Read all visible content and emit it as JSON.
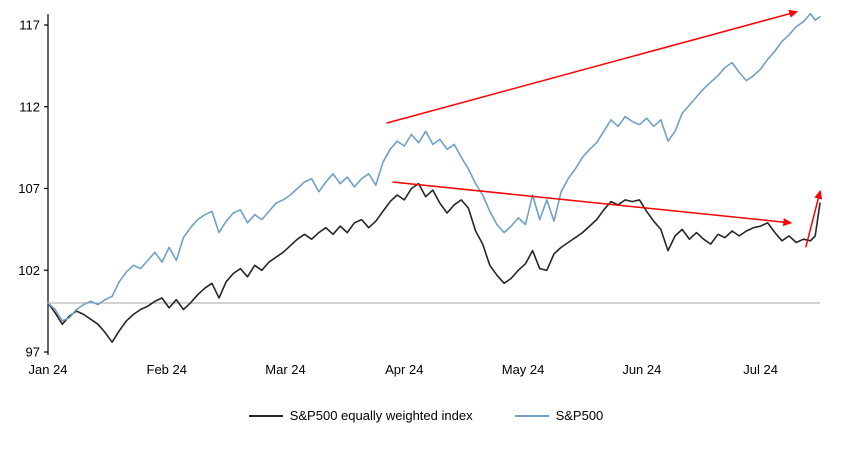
{
  "chart_data": {
    "type": "line",
    "title": "",
    "xlabel": "",
    "ylabel": "",
    "xlim": [
      0,
      6.5
    ],
    "ylim": [
      97,
      117
    ],
    "y_ticks": [
      97,
      102,
      107,
      112,
      117
    ],
    "x_tick_positions": [
      0,
      1,
      2,
      3,
      4,
      5,
      6
    ],
    "x_tick_labels": [
      "Jan 24",
      "Feb 24",
      "Mar 24",
      "Apr 24",
      "May 24",
      "Jun 24",
      "Jul 24"
    ],
    "baseline_value": 100,
    "grid": "off",
    "legend_position": "bottom-center",
    "colors": {
      "equal_weight_line": "#262626",
      "sp500_line": "#6FA0C8",
      "annotation_arrow": "#FF0000",
      "baseline": "#A6A6A6",
      "axis": "#000000"
    },
    "series": [
      {
        "name": "S&P500 equally weighted index",
        "color": "#262626",
        "points": [
          [
            0,
            100
          ],
          [
            0.06,
            99.4
          ],
          [
            0.12,
            98.7
          ],
          [
            0.18,
            99.2
          ],
          [
            0.24,
            99.5
          ],
          [
            0.3,
            99.3
          ],
          [
            0.36,
            99.0
          ],
          [
            0.42,
            98.7
          ],
          [
            0.48,
            98.2
          ],
          [
            0.54,
            97.6
          ],
          [
            0.6,
            98.3
          ],
          [
            0.66,
            98.9
          ],
          [
            0.72,
            99.3
          ],
          [
            0.78,
            99.6
          ],
          [
            0.84,
            99.8
          ],
          [
            0.9,
            100.1
          ],
          [
            0.96,
            100.3
          ],
          [
            1.02,
            99.7
          ],
          [
            1.08,
            100.2
          ],
          [
            1.14,
            99.6
          ],
          [
            1.2,
            100.0
          ],
          [
            1.26,
            100.5
          ],
          [
            1.32,
            100.9
          ],
          [
            1.38,
            101.2
          ],
          [
            1.44,
            100.3
          ],
          [
            1.5,
            101.3
          ],
          [
            1.56,
            101.8
          ],
          [
            1.62,
            102.1
          ],
          [
            1.68,
            101.6
          ],
          [
            1.74,
            102.3
          ],
          [
            1.8,
            102.0
          ],
          [
            1.86,
            102.5
          ],
          [
            1.92,
            102.8
          ],
          [
            1.98,
            103.1
          ],
          [
            2.04,
            103.5
          ],
          [
            2.1,
            103.9
          ],
          [
            2.16,
            104.2
          ],
          [
            2.22,
            103.9
          ],
          [
            2.28,
            104.3
          ],
          [
            2.34,
            104.6
          ],
          [
            2.4,
            104.2
          ],
          [
            2.46,
            104.7
          ],
          [
            2.52,
            104.3
          ],
          [
            2.58,
            104.9
          ],
          [
            2.64,
            105.1
          ],
          [
            2.7,
            104.6
          ],
          [
            2.76,
            105.0
          ],
          [
            2.82,
            105.6
          ],
          [
            2.88,
            106.2
          ],
          [
            2.94,
            106.6
          ],
          [
            3.0,
            106.3
          ],
          [
            3.06,
            107.0
          ],
          [
            3.12,
            107.3
          ],
          [
            3.18,
            106.5
          ],
          [
            3.24,
            106.9
          ],
          [
            3.3,
            106.1
          ],
          [
            3.36,
            105.5
          ],
          [
            3.42,
            106.0
          ],
          [
            3.48,
            106.3
          ],
          [
            3.54,
            105.8
          ],
          [
            3.6,
            104.4
          ],
          [
            3.66,
            103.6
          ],
          [
            3.72,
            102.3
          ],
          [
            3.78,
            101.7
          ],
          [
            3.84,
            101.2
          ],
          [
            3.9,
            101.5
          ],
          [
            3.96,
            102.0
          ],
          [
            4.02,
            102.4
          ],
          [
            4.08,
            103.2
          ],
          [
            4.14,
            102.1
          ],
          [
            4.2,
            102.0
          ],
          [
            4.26,
            103.0
          ],
          [
            4.32,
            103.4
          ],
          [
            4.38,
            103.7
          ],
          [
            4.44,
            104.0
          ],
          [
            4.5,
            104.3
          ],
          [
            4.56,
            104.7
          ],
          [
            4.62,
            105.1
          ],
          [
            4.68,
            105.7
          ],
          [
            4.74,
            106.2
          ],
          [
            4.8,
            106.0
          ],
          [
            4.86,
            106.3
          ],
          [
            4.92,
            106.2
          ],
          [
            4.98,
            106.3
          ],
          [
            5.04,
            105.6
          ],
          [
            5.1,
            105.0
          ],
          [
            5.16,
            104.5
          ],
          [
            5.22,
            103.2
          ],
          [
            5.28,
            104.1
          ],
          [
            5.34,
            104.5
          ],
          [
            5.4,
            103.9
          ],
          [
            5.46,
            104.3
          ],
          [
            5.52,
            103.9
          ],
          [
            5.58,
            103.6
          ],
          [
            5.64,
            104.2
          ],
          [
            5.7,
            104.0
          ],
          [
            5.76,
            104.4
          ],
          [
            5.82,
            104.1
          ],
          [
            5.88,
            104.4
          ],
          [
            5.94,
            104.6
          ],
          [
            6.0,
            104.7
          ],
          [
            6.06,
            104.9
          ],
          [
            6.12,
            104.3
          ],
          [
            6.18,
            103.8
          ],
          [
            6.24,
            104.1
          ],
          [
            6.3,
            103.7
          ],
          [
            6.36,
            103.9
          ],
          [
            6.42,
            103.8
          ],
          [
            6.46,
            104.1
          ],
          [
            6.5,
            106.1
          ]
        ]
      },
      {
        "name": "S&P500",
        "color": "#6FA0C8",
        "points": [
          [
            0,
            100
          ],
          [
            0.06,
            99.6
          ],
          [
            0.12,
            98.9
          ],
          [
            0.18,
            99.1
          ],
          [
            0.24,
            99.6
          ],
          [
            0.3,
            99.9
          ],
          [
            0.36,
            100.1
          ],
          [
            0.42,
            99.9
          ],
          [
            0.48,
            100.2
          ],
          [
            0.54,
            100.4
          ],
          [
            0.6,
            101.3
          ],
          [
            0.66,
            101.9
          ],
          [
            0.72,
            102.3
          ],
          [
            0.78,
            102.1
          ],
          [
            0.84,
            102.6
          ],
          [
            0.9,
            103.1
          ],
          [
            0.96,
            102.5
          ],
          [
            1.02,
            103.4
          ],
          [
            1.08,
            102.6
          ],
          [
            1.14,
            104.0
          ],
          [
            1.2,
            104.6
          ],
          [
            1.26,
            105.1
          ],
          [
            1.32,
            105.4
          ],
          [
            1.38,
            105.6
          ],
          [
            1.44,
            104.3
          ],
          [
            1.5,
            105.0
          ],
          [
            1.56,
            105.5
          ],
          [
            1.62,
            105.7
          ],
          [
            1.68,
            104.9
          ],
          [
            1.74,
            105.4
          ],
          [
            1.8,
            105.1
          ],
          [
            1.86,
            105.6
          ],
          [
            1.92,
            106.1
          ],
          [
            1.98,
            106.3
          ],
          [
            2.04,
            106.6
          ],
          [
            2.1,
            107.0
          ],
          [
            2.16,
            107.4
          ],
          [
            2.22,
            107.6
          ],
          [
            2.28,
            106.8
          ],
          [
            2.34,
            107.4
          ],
          [
            2.4,
            107.9
          ],
          [
            2.46,
            107.3
          ],
          [
            2.52,
            107.7
          ],
          [
            2.58,
            107.1
          ],
          [
            2.64,
            107.6
          ],
          [
            2.7,
            107.9
          ],
          [
            2.76,
            107.2
          ],
          [
            2.82,
            108.6
          ],
          [
            2.88,
            109.4
          ],
          [
            2.94,
            109.9
          ],
          [
            3.0,
            109.6
          ],
          [
            3.06,
            110.3
          ],
          [
            3.12,
            109.8
          ],
          [
            3.18,
            110.5
          ],
          [
            3.24,
            109.7
          ],
          [
            3.3,
            110.0
          ],
          [
            3.36,
            109.4
          ],
          [
            3.42,
            109.7
          ],
          [
            3.48,
            108.9
          ],
          [
            3.54,
            108.2
          ],
          [
            3.6,
            107.3
          ],
          [
            3.66,
            106.6
          ],
          [
            3.72,
            105.6
          ],
          [
            3.78,
            104.8
          ],
          [
            3.84,
            104.3
          ],
          [
            3.9,
            104.7
          ],
          [
            3.96,
            105.2
          ],
          [
            4.02,
            104.8
          ],
          [
            4.08,
            106.6
          ],
          [
            4.14,
            105.1
          ],
          [
            4.2,
            106.3
          ],
          [
            4.26,
            105.0
          ],
          [
            4.32,
            106.8
          ],
          [
            4.38,
            107.6
          ],
          [
            4.44,
            108.2
          ],
          [
            4.5,
            108.9
          ],
          [
            4.56,
            109.4
          ],
          [
            4.62,
            109.8
          ],
          [
            4.68,
            110.5
          ],
          [
            4.74,
            111.2
          ],
          [
            4.8,
            110.8
          ],
          [
            4.86,
            111.4
          ],
          [
            4.92,
            111.1
          ],
          [
            4.98,
            110.9
          ],
          [
            5.04,
            111.3
          ],
          [
            5.1,
            110.8
          ],
          [
            5.16,
            111.2
          ],
          [
            5.22,
            109.9
          ],
          [
            5.28,
            110.5
          ],
          [
            5.34,
            111.6
          ],
          [
            5.4,
            112.1
          ],
          [
            5.46,
            112.6
          ],
          [
            5.52,
            113.1
          ],
          [
            5.58,
            113.5
          ],
          [
            5.64,
            113.9
          ],
          [
            5.7,
            114.4
          ],
          [
            5.76,
            114.7
          ],
          [
            5.82,
            114.1
          ],
          [
            5.88,
            113.6
          ],
          [
            5.94,
            113.9
          ],
          [
            6.0,
            114.3
          ],
          [
            6.06,
            114.9
          ],
          [
            6.12,
            115.4
          ],
          [
            6.18,
            116.0
          ],
          [
            6.24,
            116.4
          ],
          [
            6.3,
            116.9
          ],
          [
            6.36,
            117.2
          ],
          [
            6.42,
            117.7
          ],
          [
            6.46,
            117.3
          ],
          [
            6.5,
            117.5
          ]
        ]
      }
    ],
    "annotations": [
      {
        "type": "arrow",
        "name": "sp500-uptrend-arrow",
        "color": "#FF0000",
        "from": [
          2.85,
          111.0
        ],
        "to": [
          6.3,
          117.8
        ]
      },
      {
        "type": "arrow",
        "name": "equal-weight-downtrend-arrow",
        "color": "#FF0000",
        "from": [
          2.9,
          107.4
        ],
        "to": [
          6.25,
          104.9
        ]
      },
      {
        "type": "arrow",
        "name": "equal-weight-endspike-arrow",
        "color": "#FF0000",
        "from": [
          6.38,
          103.4
        ],
        "to": [
          6.5,
          106.8
        ]
      }
    ],
    "legend": [
      {
        "label": "S&P500 equally weighted index",
        "color": "#262626"
      },
      {
        "label": "S&P500",
        "color": "#6FA0C8"
      }
    ]
  }
}
